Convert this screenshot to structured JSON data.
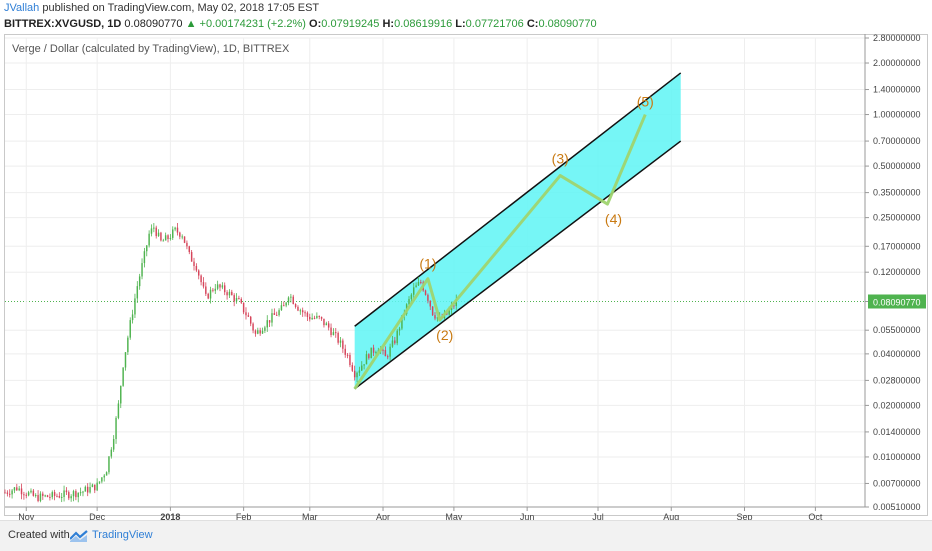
{
  "header": {
    "author": "JVallah",
    "published": "published on TradingView.com, May 02, 2018 17:05 EST",
    "symbol": "BITTREX:XVGUSD, 1D",
    "last": "0.08090770",
    "change": "▲ +0.00174231 (+2.2%)",
    "open_label": "O:",
    "open": "0.07919245",
    "high_label": "H:",
    "high": "0.08619916",
    "low_label": "L:",
    "low": "0.07721706",
    "close_label": "C:",
    "close": "0.08090770"
  },
  "footer": {
    "created_with": "Created with",
    "brand": "TradingView",
    "logo_icon": "tradingview-logo-icon"
  },
  "colors": {
    "up": "#4fb34f",
    "down": "#d6445a",
    "channel_fill": "#5ef4f4",
    "wave_line": "#9fd46f",
    "wave_label": "#c97a12",
    "price_line": "#4fb34f",
    "grid": "#eeeeee"
  },
  "chart_data": {
    "type": "line",
    "title": "Verge / Dollar (calculated by TradingView), 1D, BITTREX",
    "y_scale": "log",
    "y_tick_labels": [
      "2.80000000",
      "2.00000000",
      "1.40000000",
      "1.00000000",
      "0.70000000",
      "0.50000000",
      "0.35000000",
      "0.25000000",
      "0.17000000",
      "0.12000000",
      "0.08090770",
      "0.05500000",
      "0.04000000",
      "0.02800000",
      "0.02000000",
      "0.01400000",
      "0.01000000",
      "0.00700000",
      "0.00510000"
    ],
    "current_price": 0.0809077,
    "x_tick_labels": [
      "Nov",
      "Dec",
      "2018",
      "Feb",
      "Mar",
      "Apr",
      "May",
      "Jun",
      "Jul",
      "Aug",
      "Sep",
      "Oct"
    ],
    "x_range": [
      "2017-10-23",
      "2018-10-22"
    ],
    "y_range": [
      0.0051,
      2.8
    ],
    "price_path": [
      [
        "2017-10-23",
        0.0062
      ],
      [
        "2017-10-28",
        0.0066
      ],
      [
        "2017-11-05",
        0.0058
      ],
      [
        "2017-11-12",
        0.0059
      ],
      [
        "2017-11-20",
        0.0061
      ],
      [
        "2017-11-25",
        0.0063
      ],
      [
        "2017-12-01",
        0.0068
      ],
      [
        "2017-12-05",
        0.0085
      ],
      [
        "2017-12-08",
        0.0135
      ],
      [
        "2017-12-10",
        0.02
      ],
      [
        "2017-12-12",
        0.035
      ],
      [
        "2017-12-15",
        0.06
      ],
      [
        "2017-12-18",
        0.1
      ],
      [
        "2017-12-21",
        0.15
      ],
      [
        "2017-12-23",
        0.2
      ],
      [
        "2017-12-25",
        0.22
      ],
      [
        "2017-12-28",
        0.18
      ],
      [
        "2017-12-31",
        0.19
      ],
      [
        "2018-01-03",
        0.21
      ],
      [
        "2018-01-06",
        0.2
      ],
      [
        "2018-01-09",
        0.15
      ],
      [
        "2018-01-12",
        0.13
      ],
      [
        "2018-01-16",
        0.085
      ],
      [
        "2018-01-20",
        0.1
      ],
      [
        "2018-01-25",
        0.092
      ],
      [
        "2018-01-30",
        0.08
      ],
      [
        "2018-02-03",
        0.065
      ],
      [
        "2018-02-06",
        0.052
      ],
      [
        "2018-02-10",
        0.06
      ],
      [
        "2018-02-14",
        0.067
      ],
      [
        "2018-02-18",
        0.075
      ],
      [
        "2018-02-20",
        0.09
      ],
      [
        "2018-02-24",
        0.075
      ],
      [
        "2018-02-28",
        0.066
      ],
      [
        "2018-03-05",
        0.064
      ],
      [
        "2018-03-09",
        0.057
      ],
      [
        "2018-03-13",
        0.048
      ],
      [
        "2018-03-17",
        0.039
      ],
      [
        "2018-03-20",
        0.031
      ],
      [
        "2018-03-22",
        0.033
      ],
      [
        "2018-03-26",
        0.04
      ],
      [
        "2018-03-30",
        0.044
      ],
      [
        "2018-04-02",
        0.038
      ],
      [
        "2018-04-06",
        0.048
      ],
      [
        "2018-04-10",
        0.07
      ],
      [
        "2018-04-14",
        0.095
      ],
      [
        "2018-04-17",
        0.105
      ],
      [
        "2018-04-20",
        0.085
      ],
      [
        "2018-04-22",
        0.07
      ],
      [
        "2018-04-25",
        0.063
      ],
      [
        "2018-04-28",
        0.068
      ],
      [
        "2018-05-02",
        0.0809
      ]
    ],
    "channel": {
      "lower": [
        [
          "2018-03-20",
          0.025
        ],
        [
          "2018-08-05",
          0.7
        ]
      ],
      "upper": [
        [
          "2018-03-20",
          0.058
        ],
        [
          "2018-08-05",
          1.75
        ]
      ]
    },
    "elliott_waves": [
      {
        "label": "",
        "date": "2018-03-20",
        "value": 0.025
      },
      {
        "label": "(1)",
        "date": "2018-04-20",
        "value": 0.11
      },
      {
        "label": "(2)",
        "date": "2018-04-25",
        "value": 0.063
      },
      {
        "label": "(3)",
        "date": "2018-06-15",
        "value": 0.44
      },
      {
        "label": "(4)",
        "date": "2018-07-05",
        "value": 0.3
      },
      {
        "label": "(5)",
        "date": "2018-07-21",
        "value": 1.0
      }
    ]
  }
}
